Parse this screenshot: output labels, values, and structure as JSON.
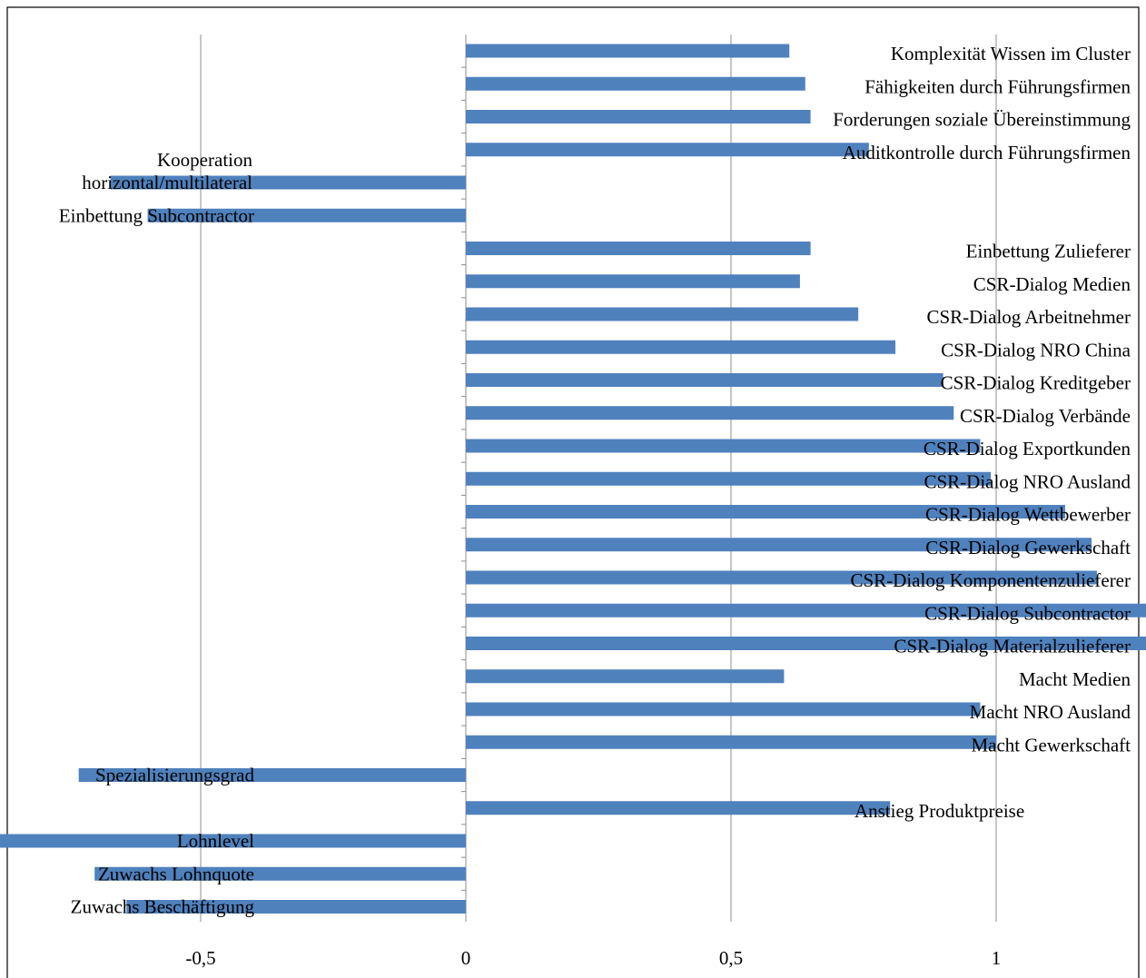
{
  "chart_data": {
    "type": "bar",
    "orientation": "horizontal",
    "xlim": [
      -1.5,
      2
    ],
    "x_ticks": [
      "-1,5",
      "-1",
      "-0,5",
      "0",
      "0,5",
      "1",
      "1,5",
      "2"
    ],
    "x_tick_values": [
      -1.5,
      -1,
      -0.5,
      0,
      0.5,
      1,
      1.5,
      2
    ],
    "grid": "vertical",
    "legend": "none",
    "bar_color": "#4f81bd",
    "categories": [
      "Komplexität Wissen im Cluster",
      "Fähigkeiten durch Führungsfirmen",
      "Forderungen soziale Übereinstimmung",
      "Auditkontrolle durch Führungsfirmen",
      "Kooperation horizontal/multilateral",
      "Einbettung Subcontractor",
      "Einbettung Zulieferer",
      "CSR-Dialog Medien",
      "CSR-Dialog Arbeitnehmer",
      "CSR-Dialog NRO China",
      "CSR-Dialog Kreditgeber",
      "CSR-Dialog Verbände",
      "CSR-Dialog Exportkunden",
      "CSR-Dialog NRO Ausland",
      "CSR-Dialog Wettbewerber",
      "CSR-Dialog Gewerkschaft",
      "CSR-Dialog Komponentenzulieferer",
      "CSR-Dialog Subcontractor",
      "CSR-Dialog Materialzulieferer",
      "Macht Medien",
      "Macht NRO Ausland",
      "Macht Gewerkschaft",
      "Spezialisierungsgrad",
      "Anstieg Produktpreise",
      "Lohnlevel",
      "Zuwachs Lohnquote",
      "Zuwachs Beschäftigung"
    ],
    "values": [
      0.61,
      0.64,
      0.65,
      0.76,
      -0.67,
      -0.6,
      0.65,
      0.63,
      0.74,
      0.81,
      0.9,
      0.92,
      0.97,
      0.99,
      1.13,
      1.18,
      1.19,
      1.3,
      1.42,
      0.6,
      0.97,
      1.0,
      -0.73,
      0.8,
      -1.06,
      -0.7,
      -0.64
    ]
  }
}
